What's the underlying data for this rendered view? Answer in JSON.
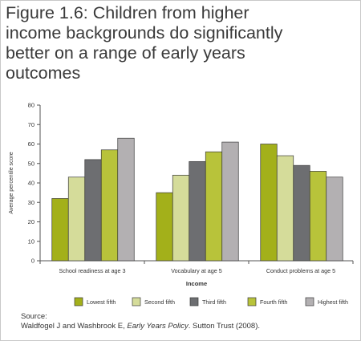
{
  "title_lines": [
    "Figure 1.6: Children from higher",
    "income backgrounds do significantly",
    "better on a range of early years",
    "outcomes"
  ],
  "source": {
    "label": "Source:",
    "citation_pre": "Waldfogel J and Washbrook E, ",
    "citation_italic": "Early Years Policy",
    "citation_post": ". Sutton Trust (2008)."
  },
  "colors": {
    "series": [
      "#a3b01a",
      "#d5dc9a",
      "#6d6e71",
      "#b8c33a",
      "#b3b0b2"
    ],
    "axis": "#555555",
    "bar_stroke": "#3a3a3a"
  },
  "chart_data": {
    "type": "bar",
    "title": "",
    "xlabel": "Income",
    "ylabel": "Average percentile score",
    "ylim": [
      0,
      80
    ],
    "yticks": [
      0,
      10,
      20,
      30,
      40,
      50,
      60,
      70,
      80
    ],
    "grid": false,
    "legend_position": "bottom",
    "categories": [
      "School readiness at age 3",
      "Vocabulary at age 5",
      "Conduct problems at age 5"
    ],
    "series": [
      {
        "name": "Lowest fifth",
        "values": [
          32,
          35,
          60
        ]
      },
      {
        "name": "Second fifth",
        "values": [
          43,
          44,
          54
        ]
      },
      {
        "name": "Third fifth",
        "values": [
          52,
          51,
          49
        ]
      },
      {
        "name": "Fourth fifth",
        "values": [
          57,
          56,
          46
        ]
      },
      {
        "name": "Highest fifth",
        "values": [
          63,
          61,
          43
        ]
      }
    ]
  }
}
